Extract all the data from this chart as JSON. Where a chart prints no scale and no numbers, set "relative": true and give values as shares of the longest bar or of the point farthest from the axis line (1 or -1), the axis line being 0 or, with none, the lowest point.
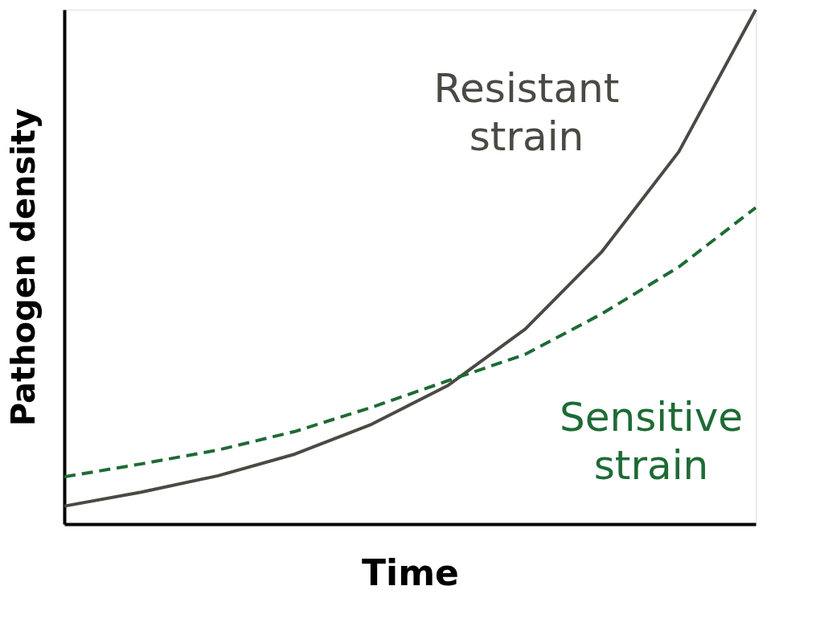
{
  "chart_data": {
    "type": "line",
    "relative": true,
    "xlabel": "Time",
    "ylabel": "Pathogen density",
    "categories": [
      null,
      null,
      null,
      null,
      null,
      null,
      null,
      null,
      null,
      null
    ],
    "series": [
      {
        "name": "Resistant strain",
        "color": "#4a4a44",
        "line_style": "solid",
        "values": [
          0.035,
          0.062,
          0.094,
          0.136,
          0.194,
          0.27,
          0.379,
          0.53,
          0.724,
          1.0
        ]
      },
      {
        "name": "Sensitive strain",
        "color": "#1e6b35",
        "line_style": "dashed",
        "values": [
          0.092,
          0.117,
          0.144,
          0.18,
          0.227,
          0.279,
          0.33,
          0.409,
          0.5,
          0.615
        ]
      }
    ]
  }
}
